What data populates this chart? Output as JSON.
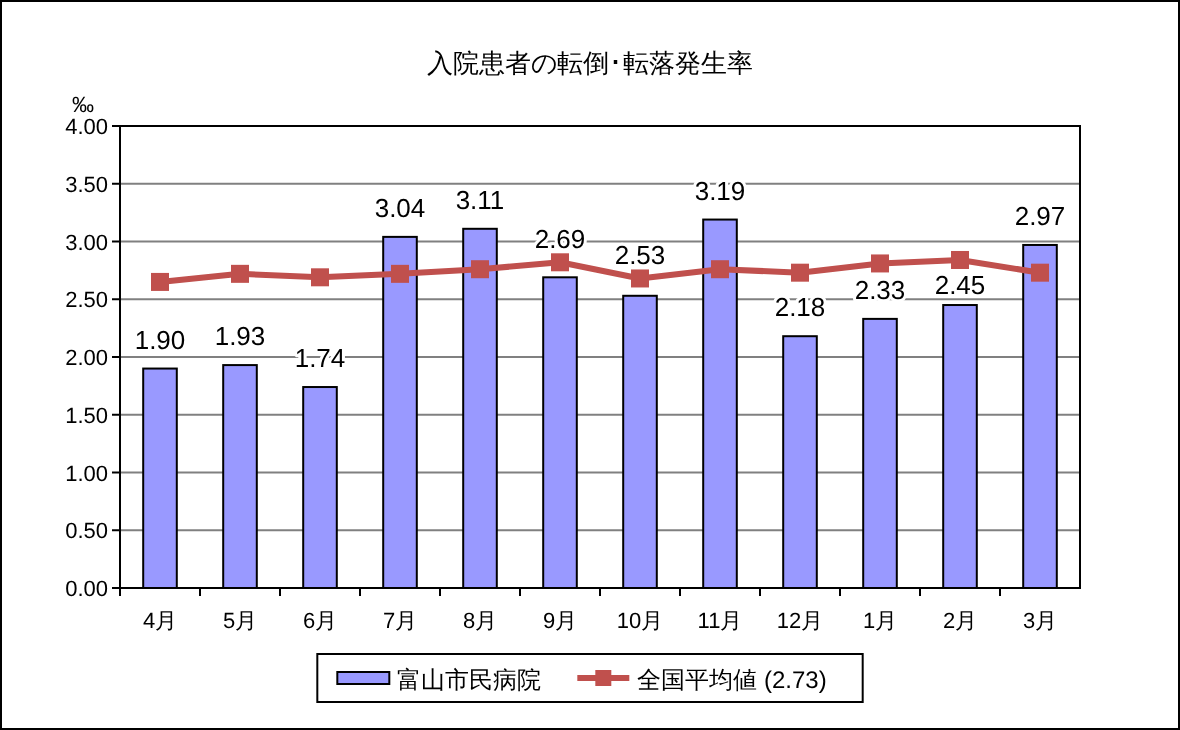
{
  "chart_data": {
    "type": "bar",
    "title": "入院患者の転倒･転落発生率",
    "ylabel": "‰",
    "categories": [
      "4月",
      "5月",
      "6月",
      "7月",
      "8月",
      "9月",
      "10月",
      "11月",
      "12月",
      "1月",
      "2月",
      "3月"
    ],
    "series": [
      {
        "name": "富山市民病院",
        "color": "#9999ff",
        "values": [
          1.9,
          1.93,
          1.74,
          3.04,
          3.11,
          2.69,
          2.53,
          3.19,
          2.18,
          2.33,
          2.45,
          2.97
        ],
        "value_labels": [
          "1.90",
          "1.93",
          "1.74",
          "3.04",
          "3.11",
          "2.69",
          "2.53",
          "3.19",
          "2.18",
          "2.33",
          "2.45",
          "2.97"
        ]
      },
      {
        "name": "全国平均値 (2.73)",
        "type": "line",
        "color": "#c0504d",
        "marker": "square",
        "values": [
          2.65,
          2.72,
          2.69,
          2.72,
          2.76,
          2.82,
          2.68,
          2.76,
          2.73,
          2.81,
          2.84,
          2.73
        ]
      }
    ],
    "ylim": [
      0,
      4
    ],
    "yticks": [
      {
        "value": 0,
        "label": "0.00"
      },
      {
        "value": 0.5,
        "label": "0.50"
      },
      {
        "value": 1,
        "label": "1.00"
      },
      {
        "value": 1.5,
        "label": "1.50"
      },
      {
        "value": 2,
        "label": "2.00"
      },
      {
        "value": 2.5,
        "label": "2.50"
      },
      {
        "value": 3,
        "label": "3.00"
      },
      {
        "value": 3.5,
        "label": "3.50"
      },
      {
        "value": 4,
        "label": "4.00"
      }
    ],
    "grid": "y",
    "legend": "bottom"
  }
}
